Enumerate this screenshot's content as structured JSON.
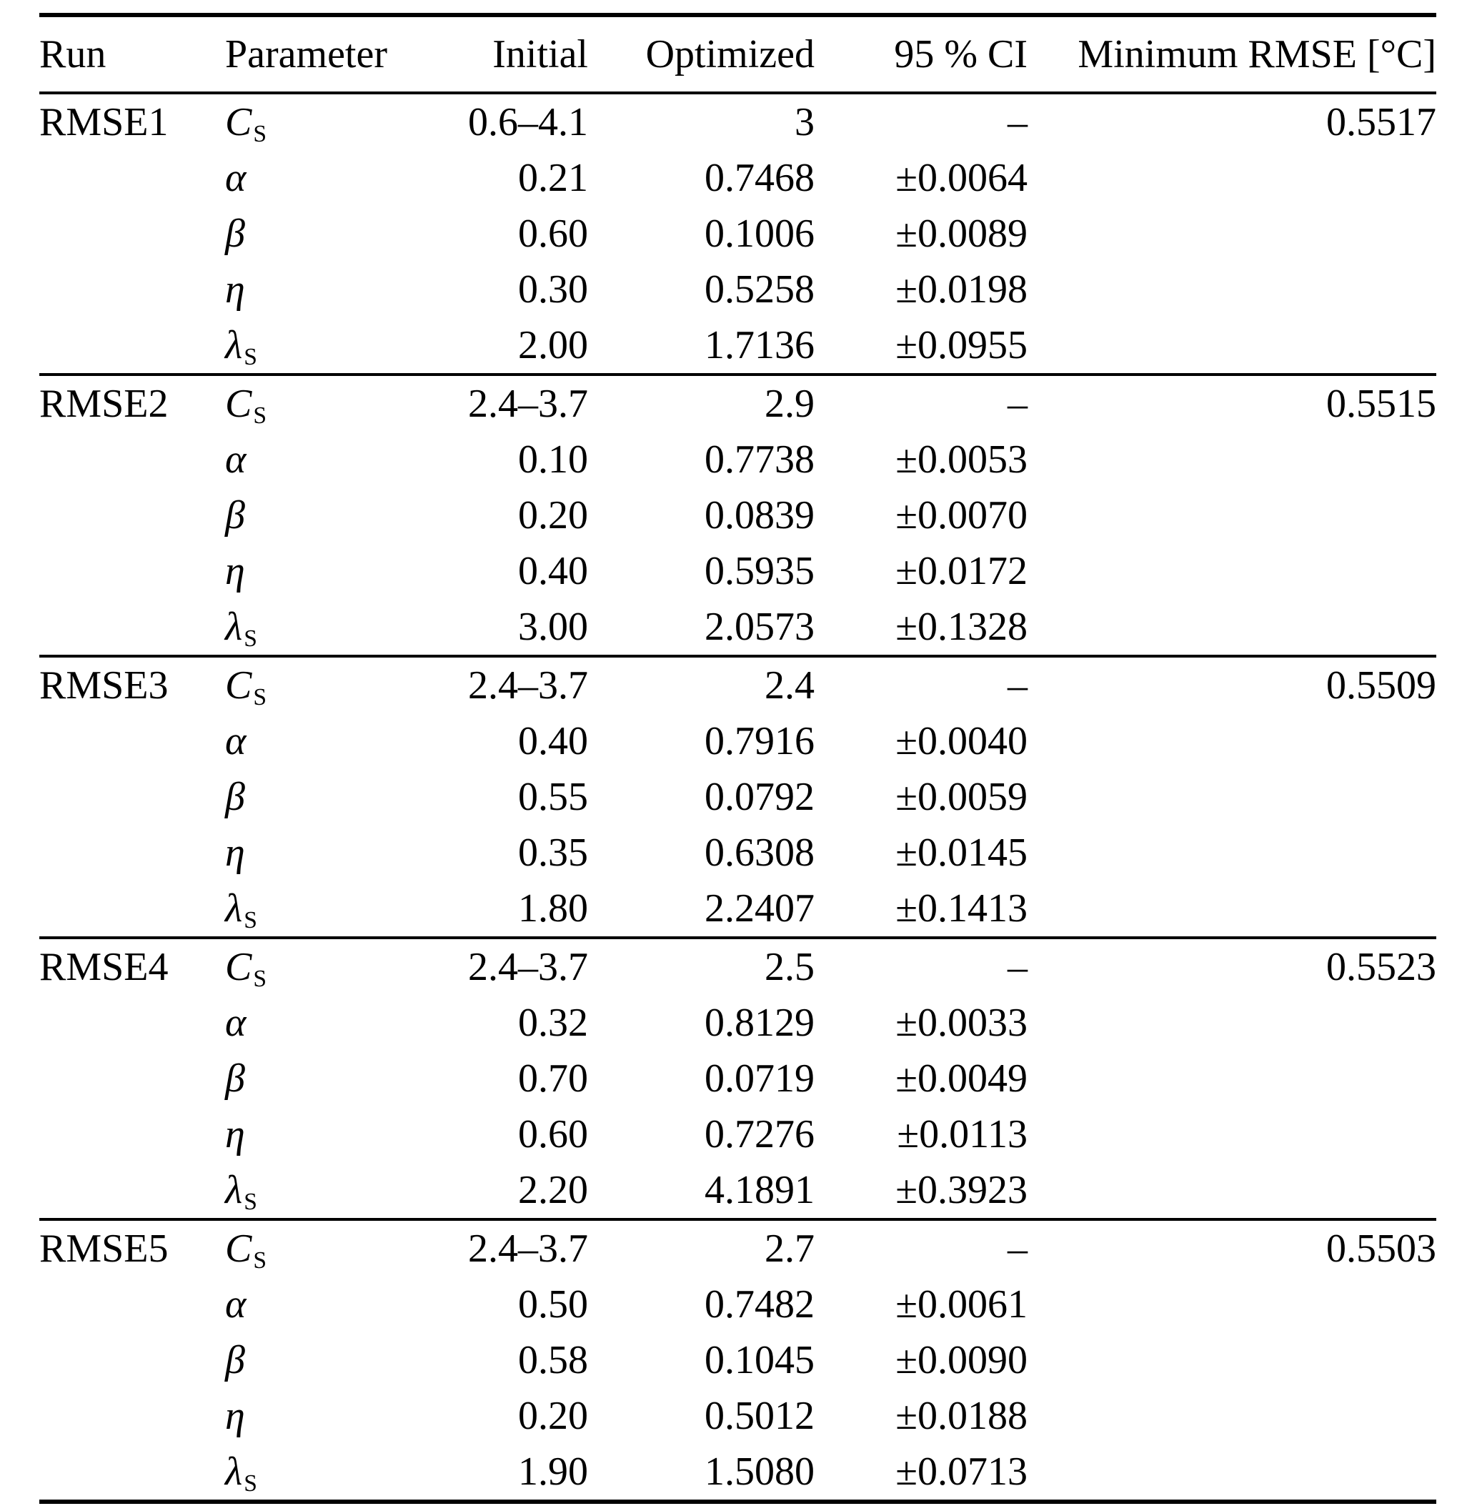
{
  "table": {
    "headers": {
      "run": "Run",
      "parameter": "Parameter",
      "initial": "Initial",
      "optimized": "Optimized",
      "ci": "95 % CI",
      "min_rmse": "Minimum RMSE [°C]"
    },
    "sections": [
      {
        "run": "RMSE1",
        "min_rmse": "0.5517",
        "rows": [
          {
            "param": "C",
            "param_sub": "S",
            "initial": "0.6–4.1",
            "optimized": "3",
            "ci": "–"
          },
          {
            "param": "α",
            "param_sub": "",
            "initial": "0.21",
            "optimized": "0.7468",
            "ci": "±0.0064"
          },
          {
            "param": "β",
            "param_sub": "",
            "initial": "0.60",
            "optimized": "0.1006",
            "ci": "±0.0089"
          },
          {
            "param": "η",
            "param_sub": "",
            "initial": "0.30",
            "optimized": "0.5258",
            "ci": "±0.0198"
          },
          {
            "param": "λ",
            "param_sub": "S",
            "initial": "2.00",
            "optimized": "1.7136",
            "ci": "±0.0955"
          }
        ]
      },
      {
        "run": "RMSE2",
        "min_rmse": "0.5515",
        "rows": [
          {
            "param": "C",
            "param_sub": "S",
            "initial": "2.4–3.7",
            "optimized": "2.9",
            "ci": "–"
          },
          {
            "param": "α",
            "param_sub": "",
            "initial": "0.10",
            "optimized": "0.7738",
            "ci": "±0.0053"
          },
          {
            "param": "β",
            "param_sub": "",
            "initial": "0.20",
            "optimized": "0.0839",
            "ci": "±0.0070"
          },
          {
            "param": "η",
            "param_sub": "",
            "initial": "0.40",
            "optimized": "0.5935",
            "ci": "±0.0172"
          },
          {
            "param": "λ",
            "param_sub": "S",
            "initial": "3.00",
            "optimized": "2.0573",
            "ci": "±0.1328"
          }
        ]
      },
      {
        "run": "RMSE3",
        "min_rmse": "0.5509",
        "rows": [
          {
            "param": "C",
            "param_sub": "S",
            "initial": "2.4–3.7",
            "optimized": "2.4",
            "ci": "–"
          },
          {
            "param": "α",
            "param_sub": "",
            "initial": "0.40",
            "optimized": "0.7916",
            "ci": "±0.0040"
          },
          {
            "param": "β",
            "param_sub": "",
            "initial": "0.55",
            "optimized": "0.0792",
            "ci": "±0.0059"
          },
          {
            "param": "η",
            "param_sub": "",
            "initial": "0.35",
            "optimized": "0.6308",
            "ci": "±0.0145"
          },
          {
            "param": "λ",
            "param_sub": "S",
            "initial": "1.80",
            "optimized": "2.2407",
            "ci": "±0.1413"
          }
        ]
      },
      {
        "run": "RMSE4",
        "min_rmse": "0.5523",
        "rows": [
          {
            "param": "C",
            "param_sub": "S",
            "initial": "2.4–3.7",
            "optimized": "2.5",
            "ci": "–"
          },
          {
            "param": "α",
            "param_sub": "",
            "initial": "0.32",
            "optimized": "0.8129",
            "ci": "±0.0033"
          },
          {
            "param": "β",
            "param_sub": "",
            "initial": "0.70",
            "optimized": "0.0719",
            "ci": "±0.0049"
          },
          {
            "param": "η",
            "param_sub": "",
            "initial": "0.60",
            "optimized": "0.7276",
            "ci": "±0.0113"
          },
          {
            "param": "λ",
            "param_sub": "S",
            "initial": "2.20",
            "optimized": "4.1891",
            "ci": "±0.3923"
          }
        ]
      },
      {
        "run": "RMSE5",
        "min_rmse": "0.5503",
        "rows": [
          {
            "param": "C",
            "param_sub": "S",
            "initial": "2.4–3.7",
            "optimized": "2.7",
            "ci": "–"
          },
          {
            "param": "α",
            "param_sub": "",
            "initial": "0.50",
            "optimized": "0.7482",
            "ci": "±0.0061"
          },
          {
            "param": "β",
            "param_sub": "",
            "initial": "0.58",
            "optimized": "0.1045",
            "ci": "±0.0090"
          },
          {
            "param": "η",
            "param_sub": "",
            "initial": "0.20",
            "optimized": "0.5012",
            "ci": "±0.0188"
          },
          {
            "param": "λ",
            "param_sub": "S",
            "initial": "1.90",
            "optimized": "1.5080",
            "ci": "±0.0713"
          }
        ]
      }
    ]
  }
}
